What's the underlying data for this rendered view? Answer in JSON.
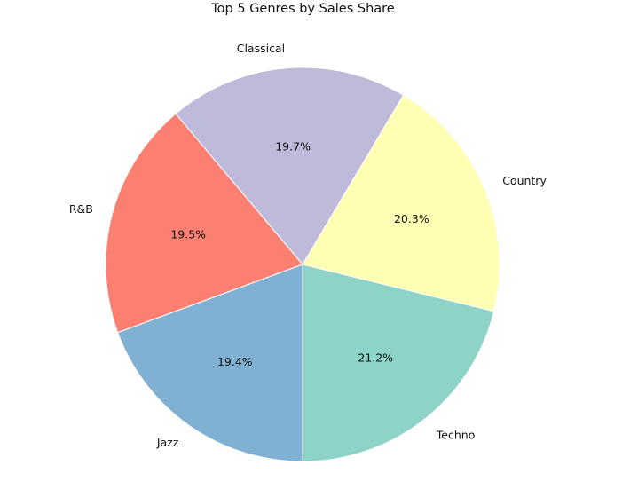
{
  "chart_data": {
    "type": "pie",
    "title": "Top 5 Genres by Sales Share",
    "start_angle_deg": -90,
    "direction": "counterclockwise",
    "slices": [
      {
        "label": "Techno",
        "value": 21.2,
        "pct_label": "21.2%",
        "color": "#8dd3c7"
      },
      {
        "label": "Country",
        "value": 20.3,
        "pct_label": "20.3%",
        "color": "#ffffb3"
      },
      {
        "label": "Classical",
        "value": 19.7,
        "pct_label": "19.7%",
        "color": "#bebada"
      },
      {
        "label": "R&B",
        "value": 19.5,
        "pct_label": "19.5%",
        "color": "#fb8072"
      },
      {
        "label": "Jazz",
        "value": 19.4,
        "pct_label": "19.4%",
        "color": "#80b1d3"
      }
    ]
  }
}
